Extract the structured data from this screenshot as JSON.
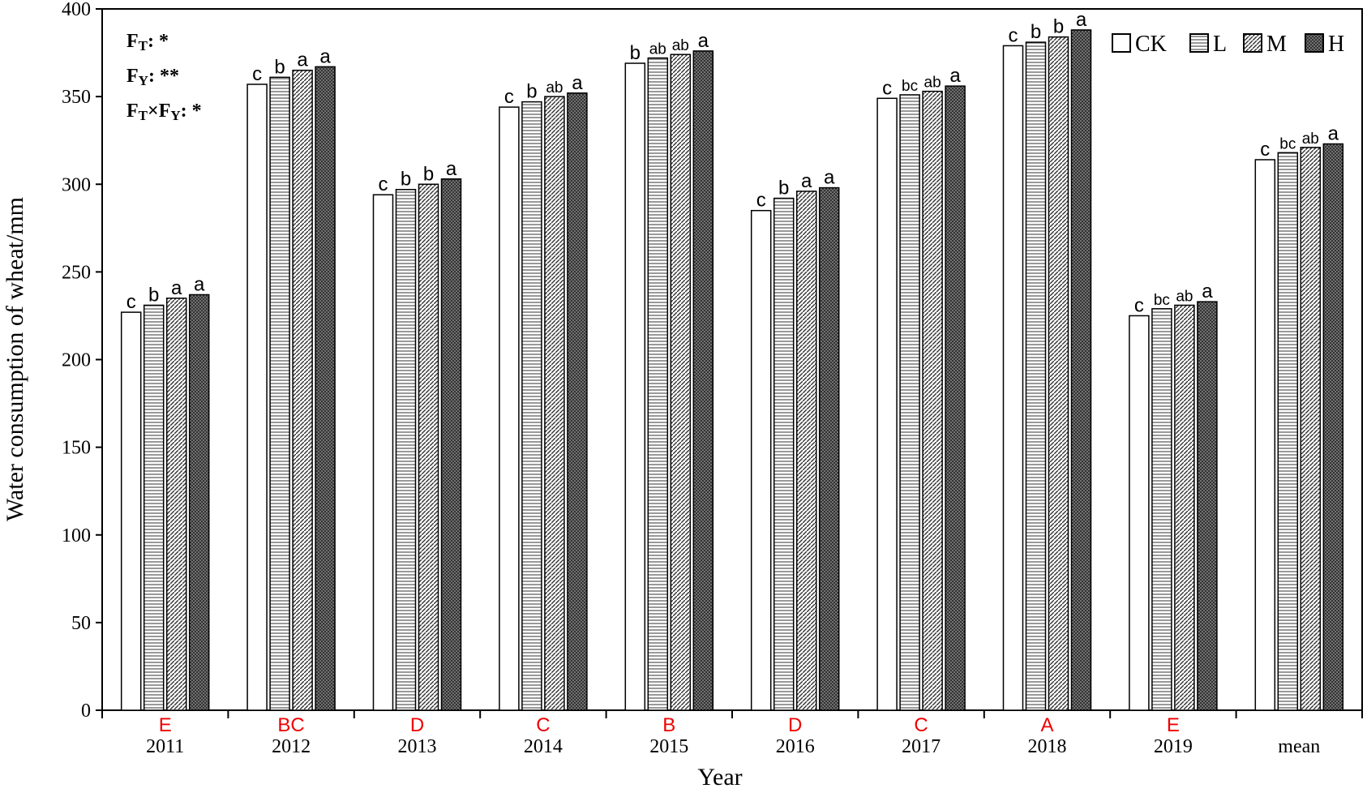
{
  "chart_data": {
    "type": "bar",
    "x_label": "Year",
    "y_label": "Water consumption of wheat/mm",
    "categories": [
      "2011",
      "2012",
      "2013",
      "2014",
      "2015",
      "2016",
      "2017",
      "2018",
      "2019",
      "mean"
    ],
    "group_letters": [
      "E",
      "BC",
      "D",
      "C",
      "B",
      "D",
      "C",
      "A",
      "E"
    ],
    "ylim": [
      0,
      400
    ],
    "yticks": [
      0,
      50,
      100,
      150,
      200,
      250,
      300,
      350,
      400
    ],
    "legend": "top-right",
    "annotations": [
      [
        {
          "text": "F"
        },
        {
          "sub": "T"
        },
        {
          "text": ": *"
        }
      ],
      [
        {
          "text": "F"
        },
        {
          "sub": "Y"
        },
        {
          "text": ": **"
        }
      ],
      [
        {
          "text": "F"
        },
        {
          "sub": "T"
        },
        {
          "text": "×F"
        },
        {
          "sub": "Y"
        },
        {
          "text": ": *"
        }
      ]
    ],
    "series": [
      {
        "name": "CK",
        "color": "#ffffff",
        "pattern": "none",
        "values": [
          227,
          357,
          294,
          344,
          369,
          285,
          349,
          379,
          225,
          314
        ],
        "letters": [
          "c",
          "c",
          "c",
          "c",
          "b",
          "c",
          "c",
          "c",
          "c",
          "c"
        ]
      },
      {
        "name": "L",
        "color": "#ffffff",
        "pattern": "horizontal",
        "values": [
          231,
          361,
          297,
          347,
          372,
          292,
          351,
          381,
          229,
          318
        ],
        "letters": [
          "b",
          "b",
          "b",
          "b",
          "ab",
          "b",
          "bc",
          "b",
          "bc",
          "bc"
        ]
      },
      {
        "name": "M",
        "color": "#ffffff",
        "pattern": "diagonal",
        "values": [
          235,
          365,
          300,
          350,
          374,
          296,
          353,
          384,
          231,
          321
        ],
        "letters": [
          "a",
          "a",
          "b",
          "ab",
          "ab",
          "a",
          "ab",
          "b",
          "ab",
          "ab"
        ]
      },
      {
        "name": "H",
        "color": "#333333",
        "pattern": "dots",
        "values": [
          237,
          367,
          303,
          352,
          376,
          298,
          356,
          388,
          233,
          323
        ],
        "letters": [
          "a",
          "a",
          "a",
          "a",
          "a",
          "a",
          "a",
          "a",
          "a",
          "a"
        ]
      }
    ]
  }
}
